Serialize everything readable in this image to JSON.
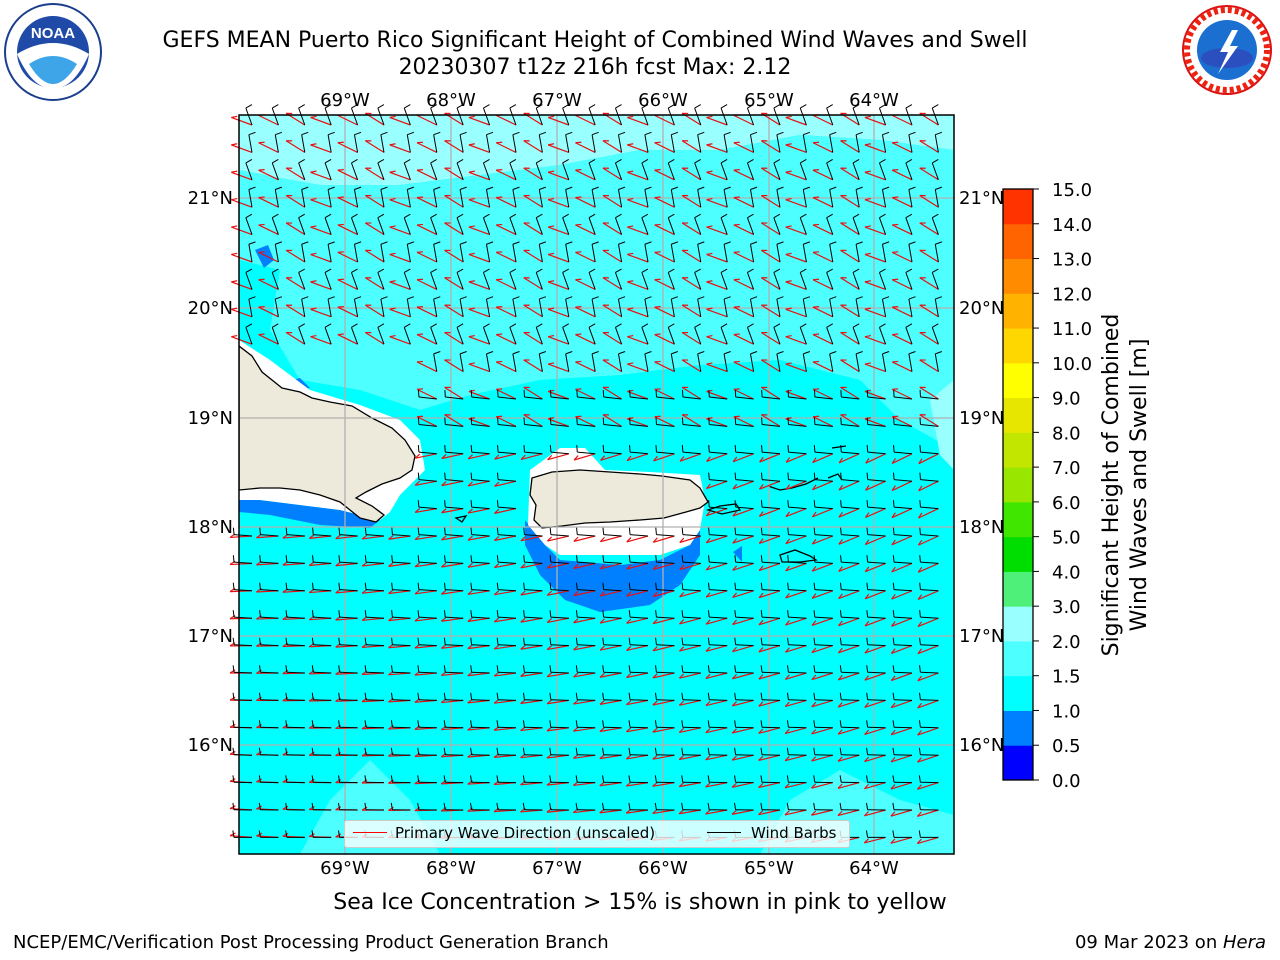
{
  "title": {
    "line1": "GEFS MEAN Puerto Rico Significant Height of Combined Wind Waves and Swell",
    "line2": "20230307 t12z 216h fcst   Max: 2.12"
  },
  "map": {
    "lon_ticks": [
      "69°W",
      "68°W",
      "67°W",
      "66°W",
      "65°W",
      "64°W"
    ],
    "lat_ticks": [
      "21°N",
      "20°N",
      "19°N",
      "18°N",
      "17°N",
      "16°N"
    ],
    "legend": {
      "wave_label": "Primary Wave Direction (unscaled)",
      "wind_label": "Wind Barbs",
      "wave_color": "#ff0000",
      "wind_color": "#000000"
    },
    "colors": {
      "ocean_main": "#00ffff",
      "ocean_high": "#99ffff",
      "ocean_low": "#0080ff",
      "land": "#eeeadb"
    }
  },
  "colorbar": {
    "label_line1": "Significant Height of Combined",
    "label_line2": "Wind Waves and Swell [m]",
    "ticks": [
      "15.0",
      "14.0",
      "13.0",
      "12.0",
      "11.0",
      "10.0",
      "9.0",
      "8.0",
      "7.0",
      "6.0",
      "5.0",
      "4.0",
      "3.0",
      "2.0",
      "1.5",
      "1.0",
      "0.5",
      "0.0"
    ],
    "colors": [
      "#0000ff",
      "#0080ff",
      "#00ffff",
      "#4dffff",
      "#99ffff",
      "#4ef07a",
      "#00dd00",
      "#41e600",
      "#99e600",
      "#c2e600",
      "#e6e600",
      "#ffff00",
      "#ffd700",
      "#ffb300",
      "#ff8c00",
      "#ff6400",
      "#ff3300",
      "#ff0000"
    ]
  },
  "caption": "Sea Ice Concentration > 15% is shown in pink to yellow",
  "footer": {
    "left": "NCEP/EMC/Verification Post Processing Product Generation Branch",
    "right_date": "09 Mar 2023 on ",
    "right_host": "Hera"
  },
  "logos": {
    "noaa_text": "NOAA",
    "nws_text": "NATIONAL WEATHER SERVICE"
  }
}
